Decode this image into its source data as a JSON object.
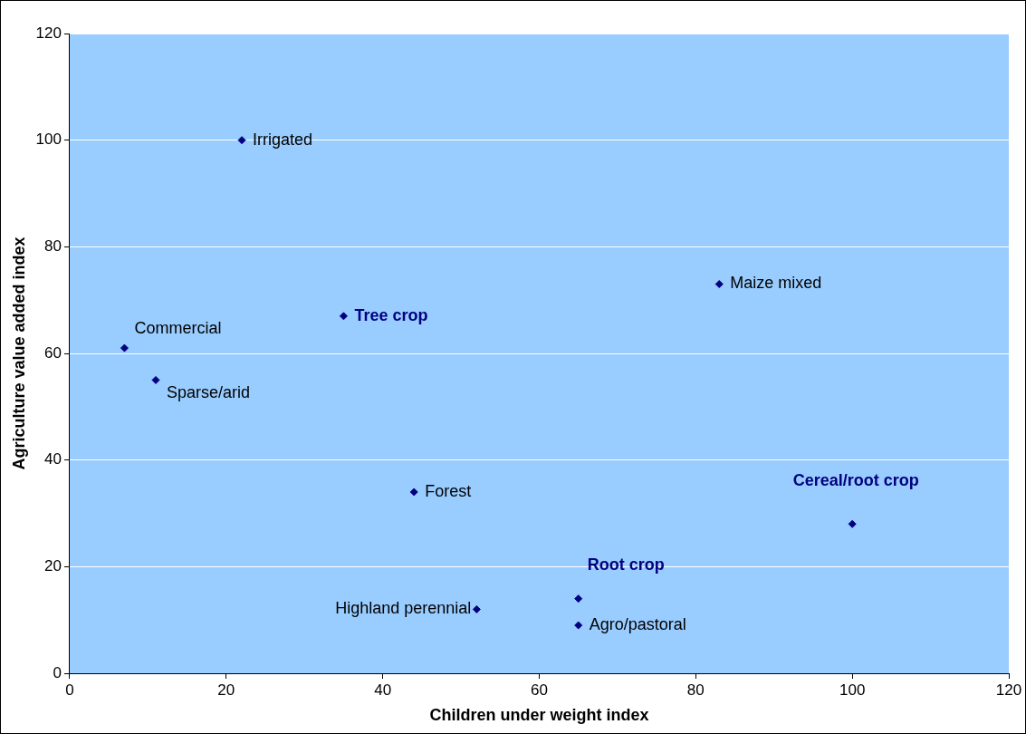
{
  "chart_data": {
    "type": "scatter",
    "xlabel": "Children under weight index",
    "ylabel": "Agriculture value added index",
    "xlim": [
      0,
      120
    ],
    "xticks": [
      0,
      20,
      40,
      60,
      80,
      100,
      120
    ],
    "ylim": [
      0,
      120
    ],
    "yticks": [
      0,
      20,
      40,
      60,
      80,
      100,
      120
    ],
    "grid": "y",
    "legend": false,
    "marker": "diamond",
    "series": [
      {
        "color": "#000080",
        "x": [
          22,
          83,
          7,
          11,
          44,
          52,
          65
        ],
        "values": [
          100,
          73,
          61,
          55,
          34,
          12,
          9
        ],
        "value_labels": [
          "Irrigated",
          "Maize mixed",
          "Commercial",
          "Sparse/arid",
          "Forest",
          "Highland perennial",
          "Agro/pastoral"
        ]
      },
      {
        "color": "#000080",
        "x": [
          35,
          100,
          65
        ],
        "values": [
          67,
          28,
          14
        ],
        "value_labels": [
          "Tree crop",
          "Cereal/root crop",
          "Root crop"
        ]
      }
    ]
  }
}
